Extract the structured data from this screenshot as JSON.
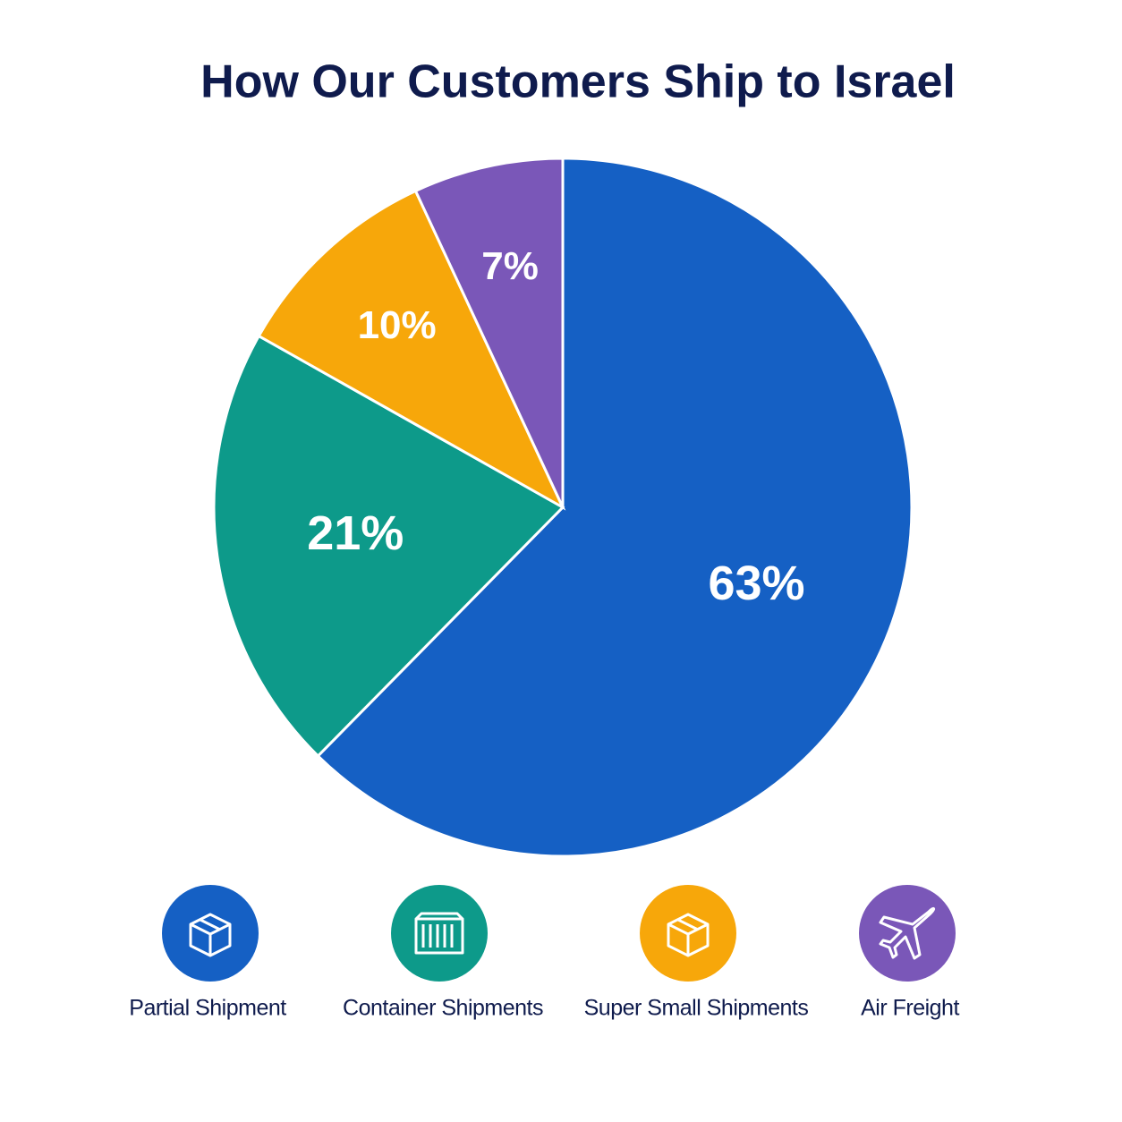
{
  "chart_data": {
    "type": "pie",
    "title": "How Our Customers Ship to Israel",
    "categories": [
      "Partial Shipment",
      "Container Shipments",
      "Super Small Shipments",
      "Air Freight"
    ],
    "values": [
      63,
      21,
      10,
      7
    ],
    "value_labels": [
      "63%",
      "21%",
      "10%",
      "7%"
    ],
    "colors": [
      "#1560c4",
      "#0d9a8a",
      "#f7a70a",
      "#7a57b8"
    ]
  }
}
